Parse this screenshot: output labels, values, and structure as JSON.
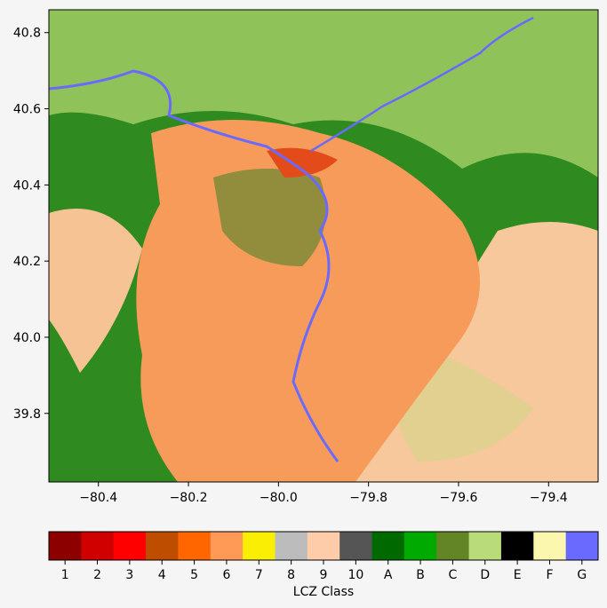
{
  "chart_data": {
    "type": "raster",
    "xlim": [
      -80.51,
      -79.29
    ],
    "ylim": [
      39.62,
      40.86
    ],
    "xticks": [
      {
        "value": -80.4,
        "label": "−80.4"
      },
      {
        "value": -80.2,
        "label": "−80.2"
      },
      {
        "value": -80.0,
        "label": "−80.0"
      },
      {
        "value": -79.8,
        "label": "−79.8"
      },
      {
        "value": -79.6,
        "label": "−79.6"
      },
      {
        "value": -79.4,
        "label": "−79.4"
      }
    ],
    "yticks": [
      39.8,
      {
        "value": 40.0,
        "label": "40.0"
      },
      40.2,
      40.4,
      40.6,
      40.8
    ],
    "colorbar": {
      "label": "LCZ Class",
      "classes": [
        {
          "label": "1",
          "color": "#8c0000"
        },
        {
          "label": "2",
          "color": "#d10000"
        },
        {
          "label": "3",
          "color": "#ff0000"
        },
        {
          "label": "4",
          "color": "#bf4d00"
        },
        {
          "label": "5",
          "color": "#ff6600"
        },
        {
          "label": "6",
          "color": "#ff9955"
        },
        {
          "label": "7",
          "color": "#faee05"
        },
        {
          "label": "8",
          "color": "#bcbcbc"
        },
        {
          "label": "9",
          "color": "#ffccaa"
        },
        {
          "label": "10",
          "color": "#555555"
        },
        {
          "label": "A",
          "color": "#006a00"
        },
        {
          "label": "B",
          "color": "#00aa00"
        },
        {
          "label": "C",
          "color": "#648525"
        },
        {
          "label": "D",
          "color": "#b9db79"
        },
        {
          "label": "E",
          "color": "#000000"
        },
        {
          "label": "F",
          "color": "#fbf7ae"
        },
        {
          "label": "G",
          "color": "#6a6aff"
        }
      ]
    }
  }
}
